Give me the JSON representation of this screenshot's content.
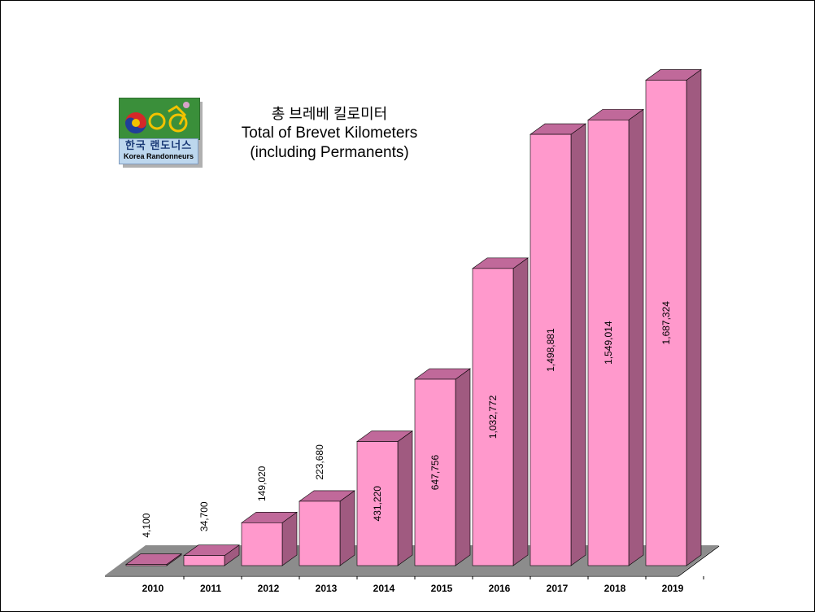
{
  "chart_data": {
    "type": "bar",
    "title": "총 브레베 킬로미터",
    "subtitle": "Total of Brevet Kilometers\n(including Permanents)",
    "categories": [
      "2010",
      "2011",
      "2012",
      "2013",
      "2014",
      "2015",
      "2016",
      "2017",
      "2018",
      "2019"
    ],
    "values": [
      4100,
      34700,
      149020,
      223680,
      431220,
      647756,
      1032772,
      1498881,
      1549014,
      1687324
    ],
    "value_labels": [
      "4,100",
      "34,700",
      "149,020",
      "223,680",
      "431,220",
      "647,756",
      "1,032,772",
      "1,498,881",
      "1,549,014",
      "1,687,324"
    ],
    "xlabel": "",
    "ylabel": "",
    "ylim": [
      0,
      1700000
    ],
    "grid": false,
    "legend": "none",
    "three_d": true
  },
  "colors": {
    "bar_front": "#ff99cc",
    "bar_top": "#c0699a",
    "bar_side": "#a05a80",
    "floor": "#8c8c8c",
    "logo_green": "#3a8f3a",
    "logo_blue": "#bdd7ee"
  },
  "logo": {
    "korean": "한국 랜도너스",
    "english": "Korea Randonneurs"
  },
  "icons": [
    "cyclist-logo-icon",
    "taegeuk-icon"
  ]
}
